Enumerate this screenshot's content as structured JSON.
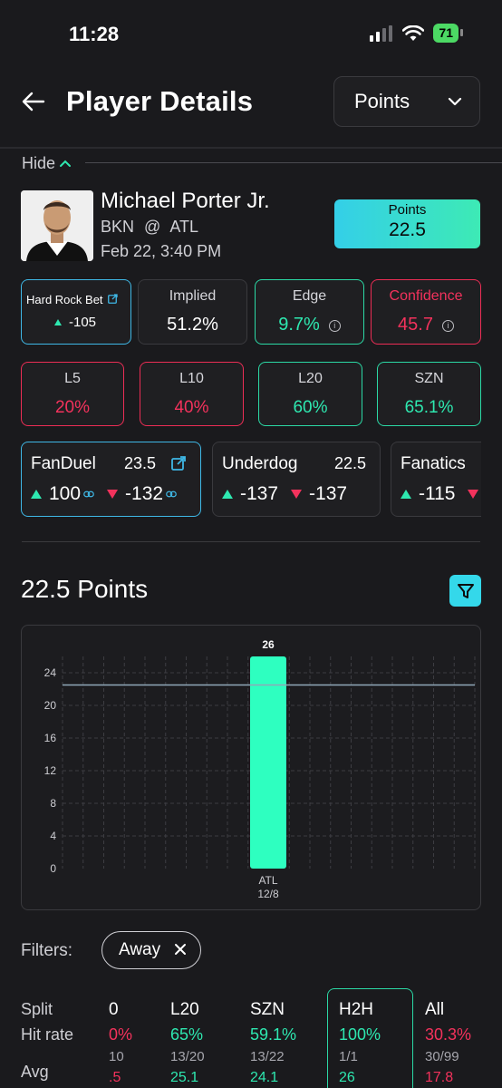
{
  "status_bar": {
    "time": "11:28",
    "battery": "71"
  },
  "header": {
    "title": "Player Details",
    "market_select": "Points"
  },
  "toggle": {
    "label": "Hide"
  },
  "player": {
    "name": "Michael Porter Jr.",
    "team": "BKN",
    "at": "@",
    "opponent": "ATL",
    "game_time": "Feb 22, 3:40 PM"
  },
  "line_pill": {
    "label": "Points",
    "value": "22.5"
  },
  "metrics": {
    "book": {
      "name": "Hard Rock Bet",
      "odds": "-105"
    },
    "implied": {
      "title": "Implied",
      "value": "51.2%"
    },
    "edge": {
      "title": "Edge",
      "value": "9.7%"
    },
    "confidence": {
      "title": "Confidence",
      "value": "45.7"
    }
  },
  "hit_rates": [
    {
      "title": "L5",
      "value": "20%"
    },
    {
      "title": "L10",
      "value": "40%"
    },
    {
      "title": "L20",
      "value": "60%"
    },
    {
      "title": "SZN",
      "value": "65.1%"
    }
  ],
  "books": [
    {
      "name": "FanDuel",
      "line": "23.5",
      "over": "100",
      "under": "-132"
    },
    {
      "name": "Underdog",
      "line": "22.5",
      "over": "-137",
      "under": "-137"
    },
    {
      "name": "Fanatics",
      "line": "",
      "over": "-115",
      "under": ""
    }
  ],
  "chart_section": {
    "title": "22.5 Points"
  },
  "chart_data": {
    "type": "bar",
    "categories": [
      "ATL\n12/8"
    ],
    "category_label": "ATL",
    "category_date": "12/8",
    "values": [
      26
    ],
    "value_label": "26",
    "reference_line": 22.5,
    "ylim": [
      0,
      26
    ],
    "yticks": [
      0,
      4,
      8,
      12,
      16,
      20,
      24
    ],
    "bar_color": "#2effc0",
    "grid": true
  },
  "filters": {
    "label": "Filters:",
    "chips": [
      "Away"
    ]
  },
  "splits": {
    "labels": {
      "split": "Split",
      "hit_rate": "Hit rate",
      "avg": "Avg"
    },
    "columns": [
      {
        "head": "0",
        "rate": "0%",
        "frac": "10",
        "avg": ".5",
        "color": "#f3325c"
      },
      {
        "head": "L20",
        "rate": "65%",
        "frac": "13/20",
        "avg": "25.1",
        "color": "#2ee8b0"
      },
      {
        "head": "SZN",
        "rate": "59.1%",
        "frac": "13/22",
        "avg": "24.1",
        "color": "#2ee8b0"
      },
      {
        "head": "H2H",
        "rate": "100%",
        "frac": "1/1",
        "avg": "26",
        "color": "#2ee8b0"
      },
      {
        "head": "All",
        "rate": "30.3%",
        "frac": "30/99",
        "avg": "17.8",
        "color": "#f3325c"
      }
    ]
  }
}
